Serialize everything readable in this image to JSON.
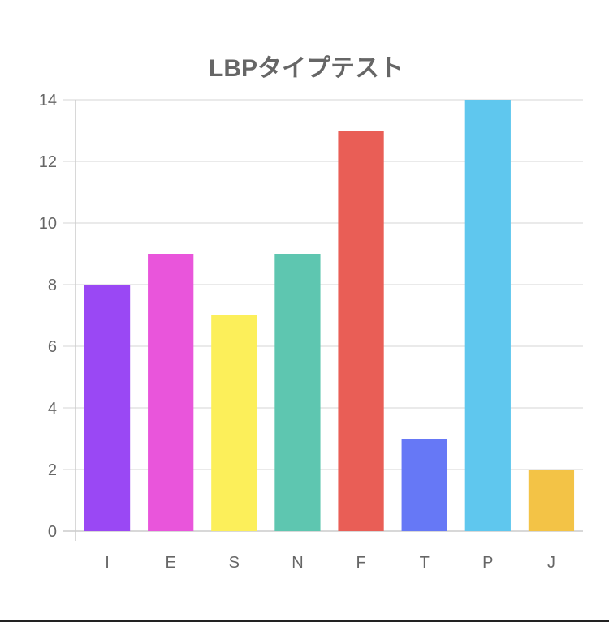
{
  "chart_data": {
    "type": "bar",
    "title": "LBPタイプテスト",
    "categories": [
      "I",
      "E",
      "S",
      "N",
      "F",
      "T",
      "P",
      "J"
    ],
    "values": [
      8,
      9,
      7,
      9,
      13,
      3,
      14,
      2
    ],
    "colors": [
      "#9a48f4",
      "#e955db",
      "#fcef5a",
      "#5ec6b0",
      "#e95e56",
      "#6678f6",
      "#5fc7ee",
      "#f3c346"
    ],
    "ylim": [
      0,
      14
    ],
    "yticks": [
      "0",
      "2",
      "4",
      "6",
      "8",
      "10",
      "12",
      "14"
    ],
    "grid": true,
    "legend": "none"
  }
}
